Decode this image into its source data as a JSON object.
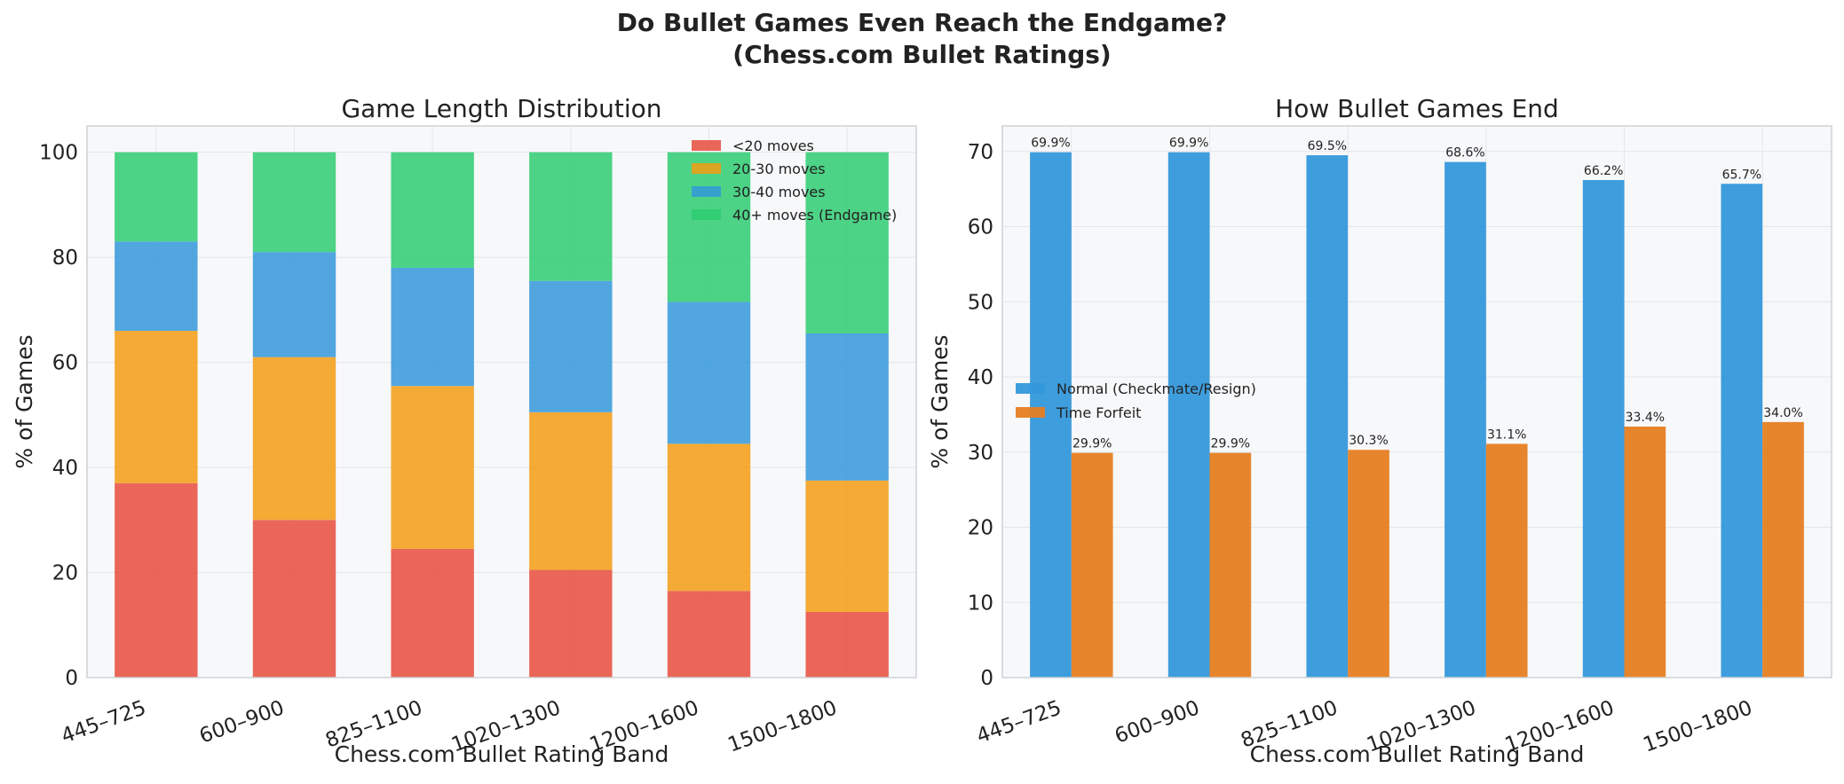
{
  "suptitle_line1": "Do Bullet Games Even Reach the Endgame?",
  "suptitle_line2": "(Chess.com Bullet Ratings)",
  "colors": {
    "lt20": "#e74c3c",
    "m20_30": "#f39c12",
    "m30_40": "#3498db",
    "m40p": "#2ecc71",
    "normal": "#3498db",
    "time_forfeit": "#e67e22",
    "plot_bg": "#f7f8fa"
  },
  "chart_data": [
    {
      "type": "bar",
      "stacked": true,
      "title": "Game Length Distribution",
      "xlabel": "Chess.com Bullet Rating Band",
      "ylabel": "% of Games",
      "categories": [
        "445–725",
        "600–900",
        "825–1100",
        "1020–1300",
        "1200–1600",
        "1500–1800"
      ],
      "series": [
        {
          "name": "<20 moves",
          "values": [
            37,
            30,
            24.5,
            20.5,
            16.5,
            12.5
          ]
        },
        {
          "name": "20-30 moves",
          "values": [
            29,
            31,
            31,
            30,
            28,
            25
          ]
        },
        {
          "name": "30-40 moves",
          "values": [
            17,
            20,
            22.5,
            25,
            27,
            28
          ]
        },
        {
          "name": "40+ moves (Endgame)",
          "values": [
            17,
            19,
            22,
            24.5,
            28.5,
            34.5
          ]
        }
      ],
      "ylim": [
        0,
        105
      ],
      "yticks": [
        0,
        20,
        40,
        60,
        80,
        100
      ],
      "grid": true,
      "legend": "top-right"
    },
    {
      "type": "bar",
      "title": "How Bullet Games End",
      "xlabel": "Chess.com Bullet Rating Band",
      "ylabel": "% of Games",
      "categories": [
        "445–725",
        "600–900",
        "825–1100",
        "1020–1300",
        "1200–1600",
        "1500–1800"
      ],
      "series": [
        {
          "name": "Normal (Checkmate/Resign)",
          "values": [
            69.9,
            69.9,
            69.5,
            68.6,
            66.2,
            65.7
          ],
          "labels": [
            "69.9%",
            "69.9%",
            "69.5%",
            "68.6%",
            "66.2%",
            "65.7%"
          ]
        },
        {
          "name": "Time Forfeit",
          "values": [
            29.9,
            29.9,
            30.3,
            31.1,
            33.4,
            34.0
          ],
          "labels": [
            "29.9%",
            "29.9%",
            "30.3%",
            "31.1%",
            "33.4%",
            "34.0%"
          ]
        }
      ],
      "ylim": [
        0,
        73.4
      ],
      "yticks": [
        0,
        10,
        20,
        30,
        40,
        50,
        60,
        70
      ],
      "grid": true,
      "legend": "center-left"
    }
  ]
}
